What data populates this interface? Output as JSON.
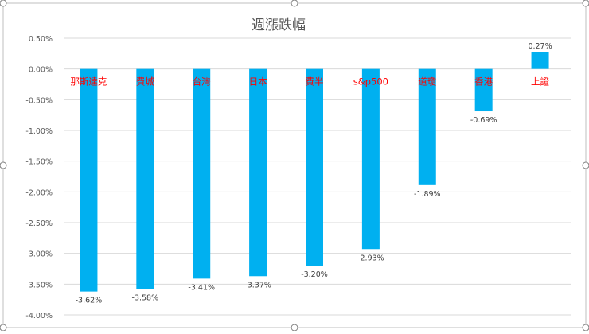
{
  "chart_data": {
    "type": "bar",
    "title": "週漲跌幅",
    "xlabel": "",
    "ylabel": "",
    "categories": [
      "那斯達克",
      "費城",
      "台灣",
      "日本",
      "費半",
      "s&p500",
      "道瓊",
      "香港",
      "上證"
    ],
    "values": [
      -3.62,
      -3.58,
      -3.41,
      -3.37,
      -3.2,
      -2.93,
      -1.89,
      -0.69,
      0.27
    ],
    "data_labels": [
      "-3.62%",
      "-3.58%",
      "-3.41%",
      "-3.37%",
      "-3.20%",
      "-2.93%",
      "-1.89%",
      "-0.69%",
      "0.27%"
    ],
    "y_ticks": [
      0.5,
      0.0,
      -0.5,
      -1.0,
      -1.5,
      -2.0,
      -2.5,
      -3.0,
      -3.5,
      -4.0
    ],
    "y_tick_labels": [
      "0.50%",
      "0.00%",
      "-0.50%",
      "-1.00%",
      "-1.50%",
      "-2.00%",
      "-2.50%",
      "-3.00%",
      "-3.50%",
      "-4.00%"
    ],
    "ylim": [
      -4.0,
      0.5
    ],
    "grid": true,
    "legend": "none",
    "colors": {
      "bar": "#00b0f0",
      "category_label": "#ff0000",
      "gridline": "#d9d9d9",
      "axis_text": "#595959",
      "frame": "#bfbfbf"
    }
  }
}
